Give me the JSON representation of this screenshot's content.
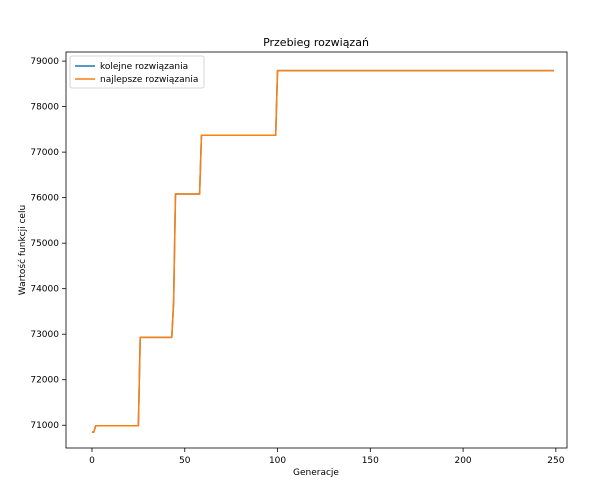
{
  "chart_data": {
    "type": "line",
    "title": "Przebieg rozwiązań",
    "xlabel": "Generacje",
    "ylabel": "Wartość funkcji celu",
    "xlim": [
      -14,
      256
    ],
    "ylim": [
      70500,
      79200
    ],
    "xticks": [
      0,
      50,
      100,
      150,
      200,
      250
    ],
    "yticks": [
      71000,
      72000,
      73000,
      74000,
      75000,
      76000,
      77000,
      78000,
      79000
    ],
    "grid": false,
    "legend_position": "top-left",
    "series": [
      {
        "name": "kolejne rozwiązania",
        "color": "#1f77b4",
        "points": [
          [
            0,
            70850
          ],
          [
            1,
            70850
          ],
          [
            2,
            70990
          ],
          [
            25,
            70990
          ],
          [
            26,
            72930
          ],
          [
            43,
            72930
          ],
          [
            44,
            73700
          ],
          [
            45,
            76080
          ],
          [
            58,
            76080
          ],
          [
            59,
            77370
          ],
          [
            99,
            77370
          ],
          [
            100,
            78790
          ],
          [
            249,
            78790
          ]
        ]
      },
      {
        "name": "najlepsze rozwiązania",
        "color": "#ff7f0e",
        "points": [
          [
            0,
            70850
          ],
          [
            1,
            70850
          ],
          [
            2,
            70990
          ],
          [
            25,
            70990
          ],
          [
            26,
            72930
          ],
          [
            43,
            72930
          ],
          [
            44,
            73700
          ],
          [
            45,
            76080
          ],
          [
            58,
            76080
          ],
          [
            59,
            77370
          ],
          [
            99,
            77370
          ],
          [
            100,
            78790
          ],
          [
            249,
            78790
          ]
        ]
      }
    ]
  }
}
